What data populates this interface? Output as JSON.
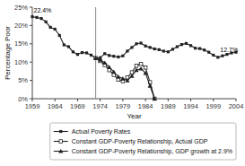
{
  "chart_data": {
    "type": "line",
    "xlabel": "Year",
    "ylabel": "Percentage Poor",
    "xlim": [
      1959,
      2004
    ],
    "ylim": [
      0,
      25
    ],
    "xticks": [
      1959,
      1964,
      1969,
      1974,
      1979,
      1984,
      1989,
      1994,
      1999,
      2004
    ],
    "yticks": [
      {
        "value": 0,
        "label": "0%"
      },
      {
        "value": 5,
        "label": "5%"
      },
      {
        "value": 10,
        "label": "10%"
      },
      {
        "value": 15,
        "label": "15%"
      },
      {
        "value": 20,
        "label": "20%"
      },
      {
        "value": 25,
        "label": "25%"
      }
    ],
    "vline_x": 1973,
    "annotations": [
      {
        "x": 1959.3,
        "y": 23.2,
        "text": "22.4%"
      },
      {
        "x": 2000.5,
        "y": 13.4,
        "text": "12.7%"
      }
    ],
    "legend": "bottom",
    "series": [
      {
        "name": "Actual Poverty Rates",
        "color": "#222222",
        "marker": "square",
        "x": [
          1959,
          1960,
          1961,
          1962,
          1963,
          1964,
          1965,
          1966,
          1967,
          1968,
          1969,
          1970,
          1971,
          1972,
          1973,
          1974,
          1975,
          1976,
          1977,
          1978,
          1979,
          1980,
          1981,
          1982,
          1983,
          1984,
          1985,
          1986,
          1987,
          1988,
          1989,
          1990,
          1991,
          1992,
          1993,
          1994,
          1995,
          1996,
          1997,
          1998,
          1999,
          2000,
          2001,
          2002,
          2003,
          2004
        ],
        "values": [
          22.4,
          22.2,
          21.9,
          21.0,
          19.5,
          19.0,
          17.3,
          14.7,
          14.2,
          12.8,
          12.1,
          12.6,
          12.5,
          11.9,
          11.1,
          11.2,
          12.3,
          11.8,
          11.6,
          11.4,
          11.7,
          13.0,
          14.0,
          15.0,
          15.2,
          14.4,
          14.0,
          13.6,
          13.4,
          13.0,
          12.8,
          13.5,
          14.2,
          14.8,
          15.1,
          14.5,
          13.8,
          13.7,
          13.3,
          12.7,
          11.9,
          11.3,
          11.7,
          12.1,
          12.5,
          12.7
        ]
      },
      {
        "name": "Constant GDP-Poverty Relationship, Actual GDP",
        "color": "#222222",
        "marker": "square-open",
        "x": [
          1973,
          1974,
          1975,
          1976,
          1977,
          1978,
          1979,
          1980,
          1981,
          1982,
          1983,
          1984,
          1985,
          1986
        ],
        "values": [
          11.1,
          10.3,
          9.2,
          7.8,
          6.5,
          5.2,
          4.8,
          5.8,
          7.2,
          9.0,
          9.5,
          8.5,
          4.5,
          0.0
        ]
      },
      {
        "name": "Constant GDP-Poverty Relationship, GDP growth at 2.9%",
        "color": "#222222",
        "marker": "triangle",
        "x": [
          1973,
          1974,
          1975,
          1976,
          1977,
          1978,
          1979,
          1980,
          1981,
          1982,
          1983,
          1984,
          1985,
          1986
        ],
        "values": [
          11.1,
          10.6,
          9.8,
          8.6,
          7.3,
          6.0,
          5.5,
          5.0,
          6.2,
          7.8,
          8.2,
          7.0,
          3.5,
          0.0
        ]
      }
    ]
  }
}
